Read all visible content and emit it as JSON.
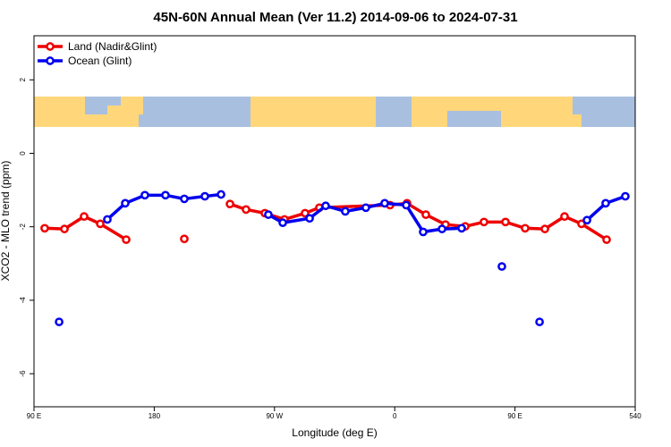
{
  "chart_data": {
    "type": "line",
    "title": "45N-60N Annual Mean (Ver 11.2)   2014-09-06 to 2024-07-31",
    "x_label": "Longitude (deg E)",
    "y_label": "XCO2 - MLO trend (ppm)",
    "xlim": [
      90,
      540
    ],
    "ylim": [
      -6.9,
      3.2
    ],
    "xticks": [
      {
        "value": 90,
        "label": "90 E"
      },
      180,
      {
        "value": 270,
        "label": "90 W"
      },
      {
        "value": 360,
        "label": "0"
      },
      {
        "value": 450,
        "label": "90 E"
      },
      540
    ],
    "yticks": [
      -6,
      -4,
      -2,
      0,
      2
    ],
    "legend": "upper left",
    "series": [
      {
        "name": "Land (Nadir&Glint)",
        "color": "#ee0000",
        "x": [
          98,
          112.8,
          127.5,
          139.6,
          159,
          null,
          202.5,
          null,
          236.7,
          248.7,
          262.8,
          277.5,
          292.9,
          303.6,
          356.5,
          369.2,
          383.3,
          398,
          412.8,
          426.8,
          442.9,
          457.6,
          472.4,
          487.1,
          499.8,
          518.6
        ],
        "values": [
          -2.04,
          -2.06,
          -1.72,
          -1.92,
          -2.35,
          null,
          -2.33,
          null,
          -1.38,
          -1.53,
          -1.63,
          -1.8,
          -1.63,
          -1.48,
          -1.41,
          -1.36,
          -1.67,
          -1.94,
          -1.99,
          -1.87,
          -1.87,
          -2.04,
          -2.06,
          -1.72,
          -1.92,
          -2.35
        ]
      },
      {
        "name": "Ocean (Glint)",
        "color": "#0000ee",
        "x": [
          108.8,
          null,
          144.9,
          158.3,
          173,
          188.4,
          202.5,
          217.9,
          230,
          null,
          265.4,
          276.2,
          296.3,
          308.3,
          323,
          338.4,
          352.5,
          368.6,
          381.3,
          395.4,
          410.1,
          null,
          440.2,
          null,
          468.4,
          null,
          503.9,
          517.9,
          532.6
        ],
        "values": [
          -4.59,
          null,
          -1.8,
          -1.36,
          -1.14,
          -1.14,
          -1.24,
          -1.17,
          -1.12,
          null,
          -1.67,
          -1.89,
          -1.77,
          -1.43,
          -1.58,
          -1.48,
          -1.36,
          -1.41,
          -2.14,
          -2.06,
          -2.04,
          null,
          -3.08,
          null,
          -4.59,
          null,
          -1.82,
          -1.36,
          -1.17
        ]
      }
    ]
  }
}
